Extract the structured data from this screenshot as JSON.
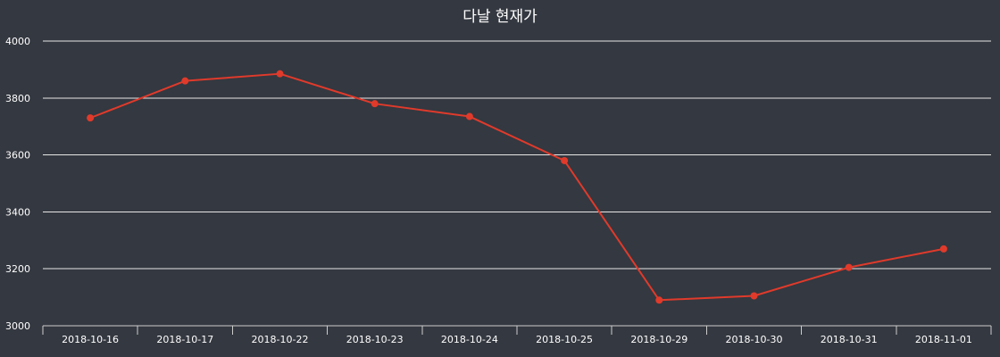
{
  "colors": {
    "background": "#343840",
    "text": "#ffffff",
    "grid": "#e6e6e6",
    "axis": "#cccccc",
    "series": "#e03a2b"
  },
  "chart_data": {
    "type": "line",
    "title": "다날 현재가",
    "xlabel": "",
    "ylabel": "",
    "categories": [
      "2018-10-16",
      "2018-10-17",
      "2018-10-22",
      "2018-10-23",
      "2018-10-24",
      "2018-10-25",
      "2018-10-29",
      "2018-10-30",
      "2018-10-31",
      "2018-11-01"
    ],
    "series": [
      {
        "values": [
          3730,
          3860,
          3885,
          3780,
          3735,
          3580,
          3090,
          3105,
          3205,
          3270
        ]
      }
    ],
    "ylim": [
      3000,
      4000
    ],
    "yticks": [
      3000,
      3200,
      3400,
      3600,
      3800,
      4000
    ],
    "grid": true,
    "legend": "none",
    "markers": true
  }
}
